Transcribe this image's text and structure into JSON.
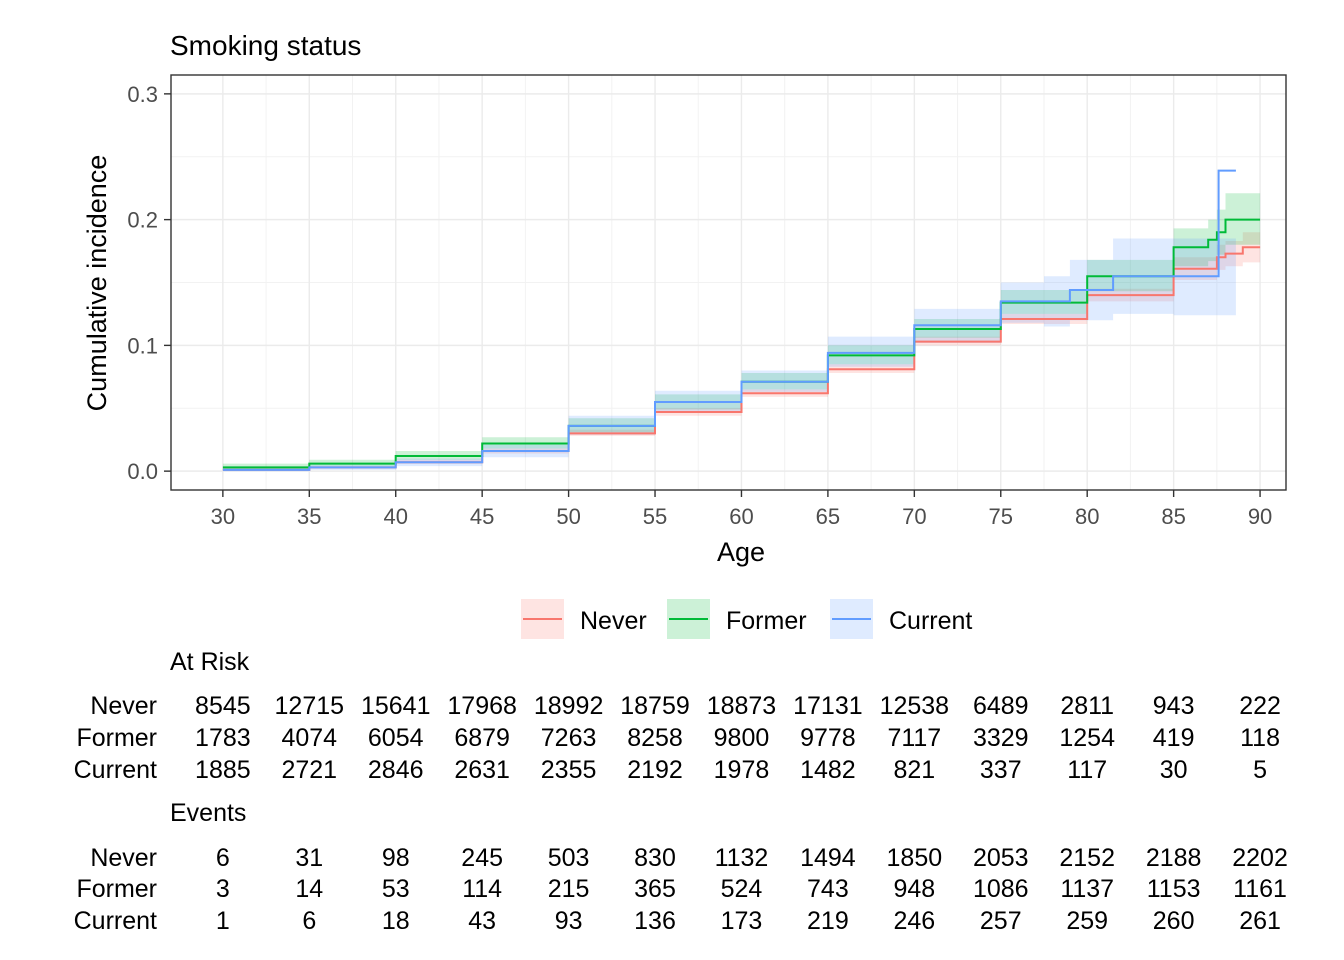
{
  "chart_data": {
    "type": "line",
    "title": "Smoking status",
    "xlabel": "Age",
    "ylabel": "Cumulative incidence",
    "xlim": [
      27,
      91.5
    ],
    "ylim": [
      -0.015,
      0.315
    ],
    "x_ticks": [
      30,
      35,
      40,
      45,
      50,
      55,
      60,
      65,
      70,
      75,
      80,
      85,
      90
    ],
    "x_tick_labels": [
      "30",
      "35",
      "40",
      "45",
      "50",
      "55",
      "60",
      "65",
      "70",
      "75",
      "80",
      "85",
      "90"
    ],
    "y_ticks": [
      0,
      0.1,
      0.2,
      0.3
    ],
    "y_tick_labels": [
      "0.0",
      "0.1",
      "0.2",
      "0.3"
    ],
    "grid": true,
    "legend_position": "bottom",
    "series": [
      {
        "name": "Never",
        "color": "#F8766D",
        "x": [
          30,
          35,
          40,
          45,
          50,
          55,
          60,
          65,
          70,
          75,
          80,
          85,
          87.5,
          88,
          89,
          90
        ],
        "y": [
          0.001,
          0.003,
          0.007,
          0.016,
          0.03,
          0.047,
          0.062,
          0.081,
          0.103,
          0.121,
          0.14,
          0.161,
          0.17,
          0.173,
          0.178,
          0.178
        ],
        "lower": [
          0.0005,
          0.002,
          0.006,
          0.014,
          0.028,
          0.044,
          0.059,
          0.078,
          0.1,
          0.117,
          0.135,
          0.152,
          0.16,
          0.163,
          0.166,
          0.166
        ],
        "upper": [
          0.002,
          0.004,
          0.009,
          0.018,
          0.033,
          0.05,
          0.065,
          0.085,
          0.107,
          0.125,
          0.145,
          0.17,
          0.18,
          0.183,
          0.19,
          0.19
        ]
      },
      {
        "name": "Former",
        "color": "#00BA38",
        "x": [
          30,
          35,
          40,
          45,
          50,
          55,
          60,
          65,
          70,
          75,
          80,
          85,
          87,
          87.5,
          88,
          89,
          90
        ],
        "y": [
          0.003,
          0.006,
          0.012,
          0.022,
          0.036,
          0.055,
          0.071,
          0.092,
          0.113,
          0.134,
          0.155,
          0.178,
          0.184,
          0.19,
          0.2,
          0.2,
          0.2
        ],
        "lower": [
          0.001,
          0.004,
          0.009,
          0.018,
          0.031,
          0.049,
          0.065,
          0.085,
          0.106,
          0.125,
          0.143,
          0.163,
          0.167,
          0.172,
          0.18,
          0.18,
          0.18
        ],
        "upper": [
          0.006,
          0.009,
          0.016,
          0.027,
          0.042,
          0.061,
          0.078,
          0.1,
          0.121,
          0.144,
          0.168,
          0.193,
          0.2,
          0.208,
          0.221,
          0.221,
          0.221
        ]
      },
      {
        "name": "Current",
        "color": "#619CFF",
        "x": [
          30,
          35,
          40,
          45,
          50,
          55,
          60,
          65,
          70,
          75,
          77.5,
          79,
          81.5,
          85,
          87.5,
          87.6,
          88.6
        ],
        "y": [
          0.001,
          0.003,
          0.007,
          0.016,
          0.036,
          0.055,
          0.071,
          0.094,
          0.116,
          0.135,
          0.135,
          0.144,
          0.155,
          0.155,
          0.155,
          0.239,
          0.239
        ],
        "lower": [
          0.0,
          0.001,
          0.004,
          0.011,
          0.029,
          0.047,
          0.063,
          0.083,
          0.102,
          0.118,
          0.115,
          0.12,
          0.125,
          0.124,
          0.124,
          0.124,
          0.124
        ],
        "upper": [
          0.003,
          0.005,
          0.01,
          0.021,
          0.044,
          0.064,
          0.08,
          0.107,
          0.129,
          0.15,
          0.155,
          0.168,
          0.185,
          0.185,
          0.185,
          0.185,
          0.185
        ]
      }
    ],
    "legend": [
      "Never",
      "Former",
      "Current"
    ]
  },
  "risk_table": {
    "title": "At Risk",
    "rows": [
      {
        "label": "Never",
        "values": [
          "8545",
          "12715",
          "15641",
          "17968",
          "18992",
          "18759",
          "18873",
          "17131",
          "12538",
          "6489",
          "2811",
          "943",
          "222"
        ]
      },
      {
        "label": "Former",
        "values": [
          "1783",
          "4074",
          "6054",
          "6879",
          "7263",
          "8258",
          "9800",
          "9778",
          "7117",
          "3329",
          "1254",
          "419",
          "118"
        ]
      },
      {
        "label": "Current",
        "values": [
          "1885",
          "2721",
          "2846",
          "2631",
          "2355",
          "2192",
          "1978",
          "1482",
          "821",
          "337",
          "117",
          "30",
          "5"
        ]
      }
    ]
  },
  "events_table": {
    "title": "Events",
    "rows": [
      {
        "label": "Never",
        "values": [
          "6",
          "31",
          "98",
          "245",
          "503",
          "830",
          "1132",
          "1494",
          "1850",
          "2053",
          "2152",
          "2188",
          "2202"
        ]
      },
      {
        "label": "Former",
        "values": [
          "3",
          "14",
          "53",
          "114",
          "215",
          "365",
          "524",
          "743",
          "948",
          "1086",
          "1137",
          "1153",
          "1161"
        ]
      },
      {
        "label": "Current",
        "values": [
          "1",
          "6",
          "18",
          "43",
          "93",
          "136",
          "173",
          "219",
          "246",
          "257",
          "259",
          "260",
          "261"
        ]
      }
    ]
  }
}
